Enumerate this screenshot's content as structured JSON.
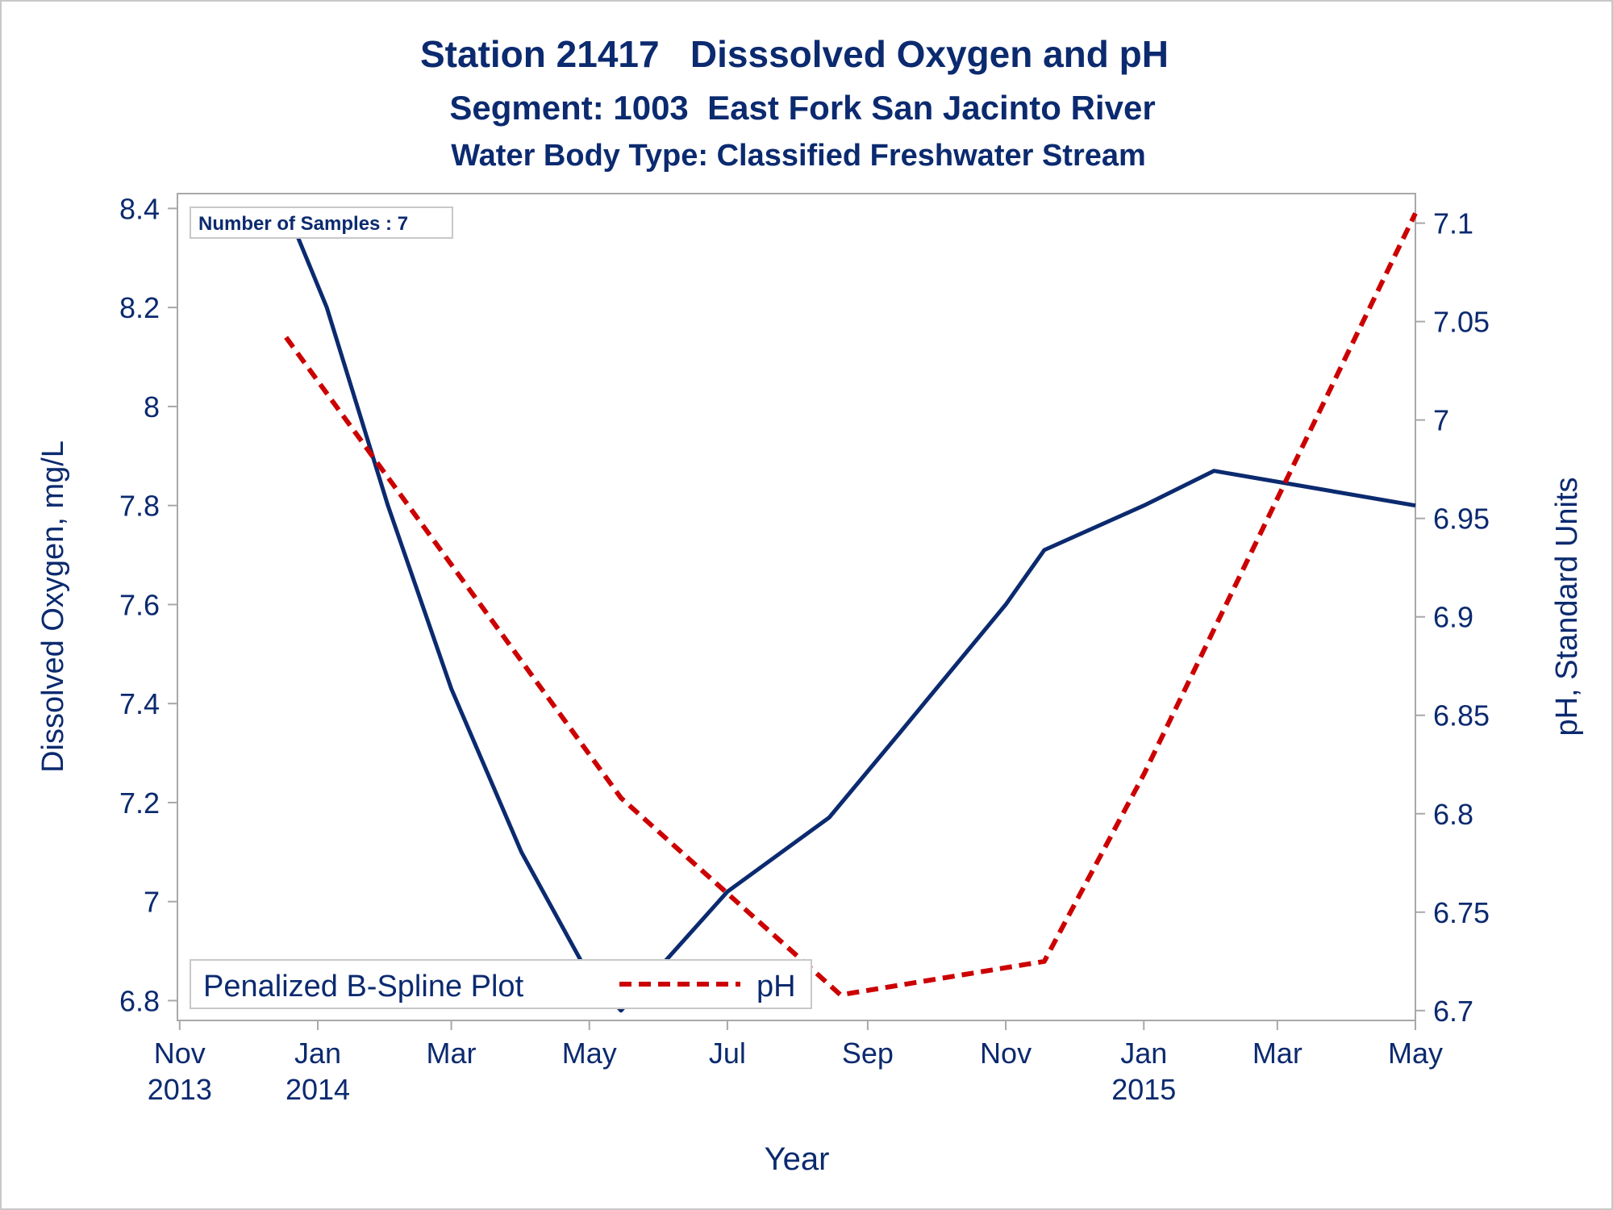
{
  "chart_data": {
    "type": "line",
    "title": "Station 21417   Disssolved Oxygen and pH",
    "subtitle": "Segment: 1003  East Fork San Jacinto River",
    "subtitle2": "Water Body Type: Classified Freshwater Stream",
    "xlabel": "Year",
    "ylabel_left": "Dissolved Oxygen, mg/L",
    "ylabel_right": "pH, Standard Units",
    "inset_note": "Number of Samples : 7",
    "x_ticks": [
      {
        "date": "2013-11-01",
        "label": [
          "Nov",
          "2013"
        ]
      },
      {
        "date": "2014-01-01",
        "label": [
          "Jan",
          "2014"
        ]
      },
      {
        "date": "2014-03-01",
        "label": [
          "Mar",
          ""
        ]
      },
      {
        "date": "2014-05-01",
        "label": [
          "May",
          ""
        ]
      },
      {
        "date": "2014-07-01",
        "label": [
          "Jul",
          ""
        ]
      },
      {
        "date": "2014-09-01",
        "label": [
          "Sep",
          ""
        ]
      },
      {
        "date": "2014-11-01",
        "label": [
          "Nov",
          ""
        ]
      },
      {
        "date": "2015-01-01",
        "label": [
          "Jan",
          "2015"
        ]
      },
      {
        "date": "2015-03-01",
        "label": [
          "Mar",
          ""
        ]
      },
      {
        "date": "2015-05-01",
        "label": [
          "May",
          ""
        ]
      }
    ],
    "xlim": [
      "2013-10-31",
      "2015-05-01"
    ],
    "y_left": {
      "lim": [
        6.76,
        8.43
      ],
      "ticks": [
        6.8,
        7,
        7.2,
        7.4,
        7.6,
        7.8,
        8,
        8.2,
        8.4
      ],
      "tick_labels": [
        "6.8",
        "7",
        "7.2",
        "7.4",
        "7.6",
        "7.8",
        "8",
        "8.2",
        "8.4"
      ]
    },
    "y_right": {
      "lim": [
        6.695,
        7.115
      ],
      "ticks": [
        6.7,
        6.75,
        6.8,
        6.85,
        6.9,
        6.95,
        7.0,
        7.05,
        7.1
      ],
      "tick_labels": [
        "6.7",
        "6.75",
        "6.8",
        "6.85",
        "6.9",
        "6.95",
        "7",
        "7.05",
        "7.1"
      ]
    },
    "series": [
      {
        "axis": "left",
        "color": "#0b2a6f",
        "style": "solid",
        "points": [
          {
            "x": "2013-12-18",
            "y": 8.4
          },
          {
            "x": "2014-01-05",
            "y": 8.2
          },
          {
            "x": "2014-02-01",
            "y": 7.8
          },
          {
            "x": "2014-03-01",
            "y": 7.43
          },
          {
            "x": "2014-04-01",
            "y": 7.1
          },
          {
            "x": "2014-05-01",
            "y": 6.85
          },
          {
            "x": "2014-05-15",
            "y": 6.78
          },
          {
            "x": "2014-07-01",
            "y": 7.02
          },
          {
            "x": "2014-08-15",
            "y": 7.17
          },
          {
            "x": "2014-09-15",
            "y": 7.34
          },
          {
            "x": "2014-11-01",
            "y": 7.6
          },
          {
            "x": "2014-11-18",
            "y": 7.71
          },
          {
            "x": "2015-01-01",
            "y": 7.8
          },
          {
            "x": "2015-02-01",
            "y": 7.87
          },
          {
            "x": "2015-05-01",
            "y": 7.8
          }
        ]
      },
      {
        "name": "pH",
        "axis": "right",
        "color": "#cc0000",
        "style": "dashed",
        "points": [
          {
            "x": "2013-12-18",
            "y": 7.042
          },
          {
            "x": "2014-05-15",
            "y": 6.808
          },
          {
            "x": "2014-08-20",
            "y": 6.708
          },
          {
            "x": "2014-11-18",
            "y": 6.725
          },
          {
            "x": "2015-01-01",
            "y": 6.82
          },
          {
            "x": "2015-05-01",
            "y": 7.105
          }
        ]
      }
    ],
    "legend": {
      "placement": "bottom-left",
      "title": "Penalized B-Spline Plot",
      "entries": [
        {
          "label": "pH",
          "color": "#cc0000",
          "style": "dashed"
        }
      ]
    }
  }
}
